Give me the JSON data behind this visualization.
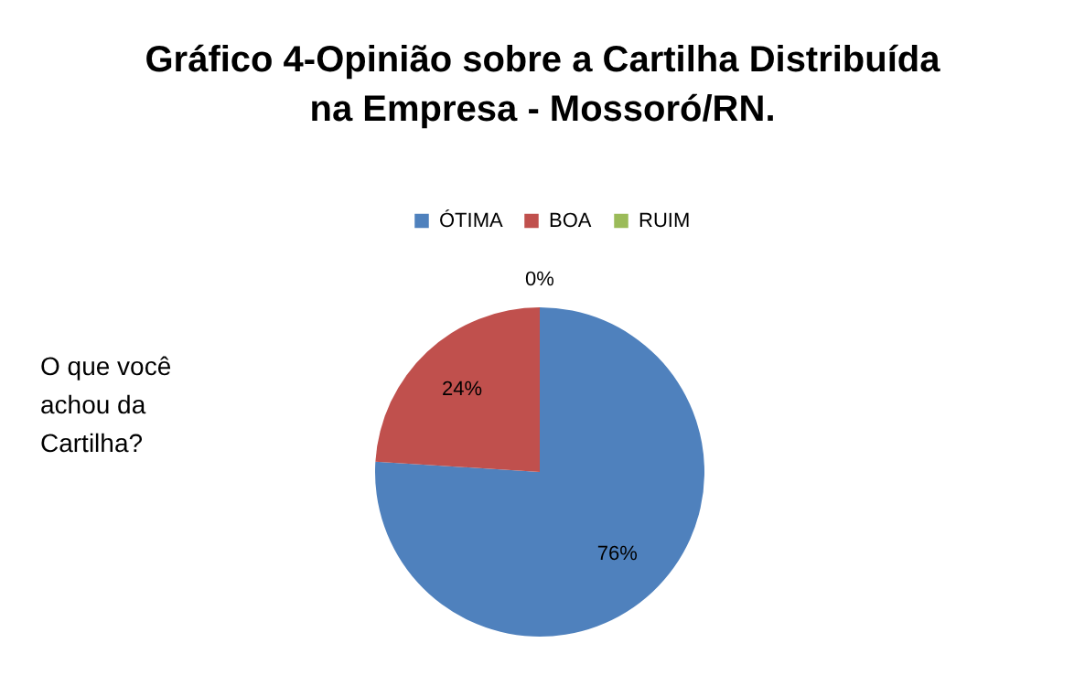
{
  "chart_data": {
    "type": "pie",
    "title": "Gráfico 4-Opinião sobre a Cartilha Distribuída na Empresa - Mossoró/RN.",
    "categories": [
      "ÓTIMA",
      "BOA",
      "RUIM"
    ],
    "values": [
      76,
      24,
      0
    ],
    "colors": [
      "#4f81bd",
      "#c0504d",
      "#9bbb59"
    ],
    "value_labels": [
      "76%",
      "24%",
      "0%"
    ],
    "legend": "top",
    "annotations": [
      "O que você achou da Cartilha?"
    ]
  }
}
